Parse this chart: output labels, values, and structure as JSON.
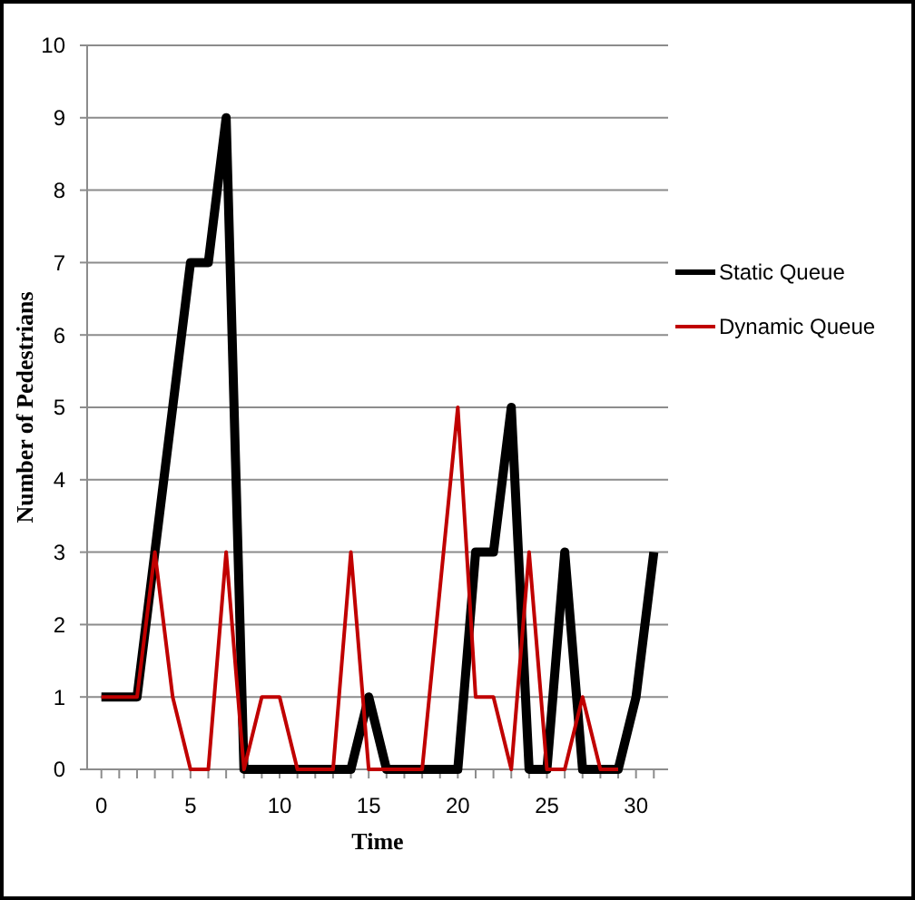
{
  "chart_data": {
    "type": "line",
    "xlabel": "Time",
    "ylabel": "Number of Pedestrians",
    "xlim": [
      -0.8,
      31.8
    ],
    "xticks": [
      0,
      5,
      10,
      15,
      20,
      25,
      30
    ],
    "ylim": [
      0,
      10
    ],
    "yticks": [
      0,
      1,
      2,
      3,
      4,
      5,
      6,
      7,
      8,
      9,
      10
    ],
    "grid": "y",
    "legend": "right",
    "marker": "none",
    "series": [
      {
        "name": "Static Queue",
        "color": "#000000",
        "x": [
          0,
          1,
          2,
          3,
          4,
          5,
          6,
          7,
          8,
          9,
          10,
          11,
          12,
          13,
          14,
          15,
          16,
          17,
          18,
          19,
          20,
          21,
          22,
          23,
          24,
          25,
          26,
          27,
          28,
          29,
          30,
          31
        ],
        "values": [
          1,
          1,
          1,
          3,
          5,
          7,
          7,
          9,
          0,
          0,
          0,
          0,
          0,
          0,
          0,
          1,
          0,
          0,
          0,
          0,
          0,
          3,
          3,
          5,
          0,
          0,
          3,
          0,
          0,
          0,
          1,
          3
        ]
      },
      {
        "name": "Dynamic Queue",
        "color": "#c00000",
        "x": [
          0,
          1,
          2,
          3,
          4,
          5,
          6,
          7,
          8,
          9,
          10,
          11,
          12,
          13,
          14,
          15,
          16,
          17,
          18,
          19,
          20,
          21,
          22,
          23,
          24,
          25,
          26,
          27,
          28,
          29
        ],
        "values": [
          1,
          1,
          1,
          3,
          1,
          0,
          0,
          3,
          0,
          1,
          1,
          0,
          0,
          0,
          3,
          0,
          0,
          0,
          0,
          2.5,
          5,
          1,
          1,
          0,
          3,
          0,
          0,
          1,
          0,
          0
        ]
      }
    ]
  }
}
